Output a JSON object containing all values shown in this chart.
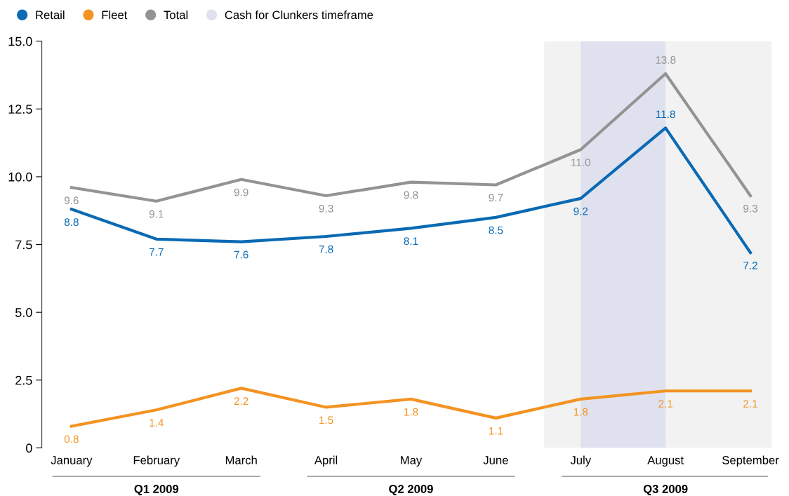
{
  "chart_data": {
    "type": "line",
    "categories": [
      "January",
      "February",
      "March",
      "April",
      "May",
      "June",
      "July",
      "August",
      "September"
    ],
    "series": [
      {
        "name": "Retail",
        "color": "#0a6ab4",
        "values": [
          8.8,
          7.7,
          7.6,
          7.8,
          8.1,
          8.5,
          9.2,
          11.8,
          7.2
        ],
        "value_labels": [
          "8.8",
          "7.7",
          "7.6",
          "7.8",
          "8.1",
          "8.5",
          "9.2",
          "11.8",
          "7.2"
        ]
      },
      {
        "name": "Fleet",
        "color": "#f39322",
        "values": [
          0.8,
          1.4,
          2.2,
          1.5,
          1.8,
          1.1,
          1.8,
          2.1,
          2.1
        ],
        "value_labels": [
          "0.8",
          "1.4",
          "2.2",
          "1.5",
          "1.8",
          "1.1",
          "1.8",
          "2.1",
          "2.1"
        ]
      },
      {
        "name": "Total",
        "color": "#939393",
        "values": [
          9.6,
          9.1,
          9.9,
          9.3,
          9.8,
          9.7,
          11.0,
          13.8,
          9.3
        ],
        "value_labels": [
          "9.6",
          "9.1",
          "9.9",
          "9.3",
          "9.8",
          "9.7",
          "11.0",
          "13.8",
          "9.3"
        ]
      }
    ],
    "ylim": [
      0,
      15
    ],
    "yticks": [
      0,
      {
        "value": 2.5,
        "label": "2.5"
      },
      {
        "value": 5,
        "label": "5.0"
      },
      {
        "value": 7.5,
        "label": "7.5"
      },
      {
        "value": 10,
        "label": "10.0"
      },
      {
        "value": 12.5,
        "label": "12.5"
      },
      {
        "value": 15,
        "label": "15.0"
      }
    ],
    "bands": [
      {
        "axis": "x",
        "from": "July",
        "to": "September",
        "color": "#f1f2f1"
      },
      {
        "axis": "x",
        "from": "July",
        "to": "August",
        "label": "Cash for Clunkers timeframe",
        "color": "#dfe2ee"
      }
    ],
    "annotations": [
      "Q1 2009",
      "Q2 2009",
      "Q3 2009"
    ],
    "grid": false,
    "legend": "top left",
    "marker": "none",
    "line_style": "solid"
  }
}
